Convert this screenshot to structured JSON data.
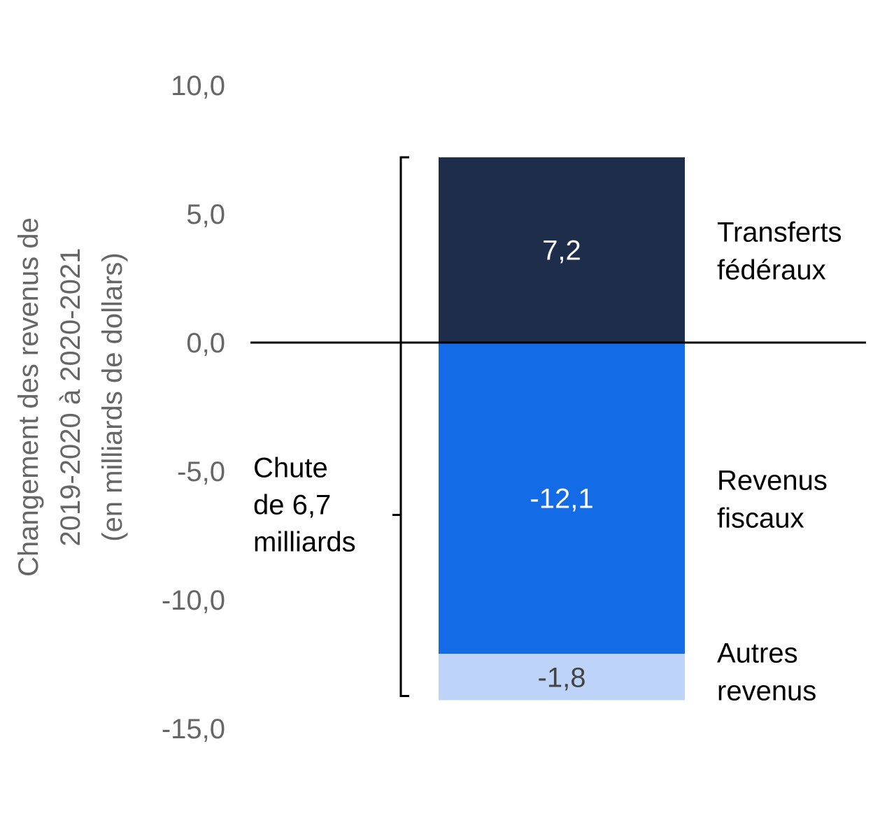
{
  "chart_data": {
    "type": "bar",
    "stacked": true,
    "ylabel_lines": [
      "Changement des revenus de",
      "2019-2020 à 2020-2021",
      "(en milliards de dollars)"
    ],
    "ylim": [
      -15,
      10
    ],
    "yticks": [
      10,
      5,
      0,
      -5,
      -10,
      -15
    ],
    "ytick_labels": [
      "10,0",
      "5,0",
      "0,0",
      "-5,0",
      "-10,0",
      "-15,0"
    ],
    "grid": false,
    "segments": [
      {
        "name_lines": [
          "Transferts",
          "fédéraux"
        ],
        "value": 7.2,
        "label": "7,2",
        "color": "#1e2d4a",
        "label_color": "#ffffff"
      },
      {
        "name_lines": [
          "Revenus",
          "fiscaux"
        ],
        "value": -12.1,
        "label": "-12,1",
        "color": "#136be6",
        "label_color": "#ffffff"
      },
      {
        "name_lines": [
          "Autres",
          "revenus"
        ],
        "value": -1.8,
        "label": "-1,8",
        "color": "#bdd4f8",
        "label_color": "#444444"
      }
    ],
    "annotation_lines": [
      "Chute",
      "de 6,7",
      "milliards"
    ],
    "annotation_value": -6.7
  }
}
